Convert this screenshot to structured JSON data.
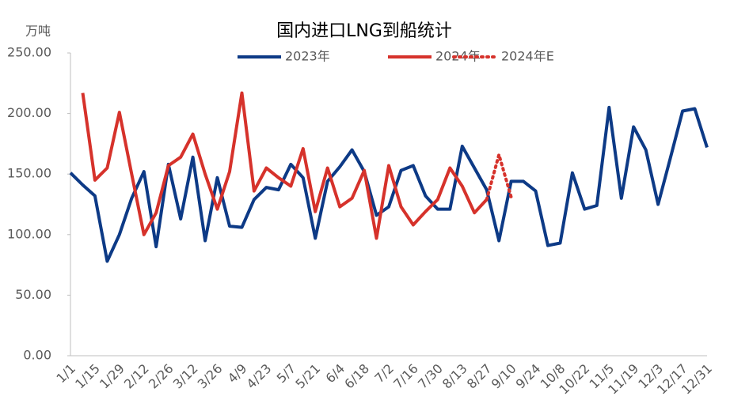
{
  "chart_data": {
    "type": "line",
    "title": "国内进口LNG到船统计",
    "y_label": "万吨",
    "categories": [
      "1/1",
      null,
      "1/15",
      null,
      "1/29",
      null,
      "2/12",
      null,
      "2/26",
      null,
      "3/12",
      null,
      "3/26",
      null,
      "4/9",
      null,
      "4/23",
      null,
      "5/7",
      null,
      "5/21",
      null,
      "6/4",
      null,
      "6/18",
      null,
      "7/2",
      null,
      "7/16",
      null,
      "7/30",
      null,
      "8/13",
      null,
      "8/27",
      null,
      "9/10",
      null,
      "9/24",
      null,
      "10/8",
      null,
      "10/22",
      null,
      "11/5",
      null,
      "11/19",
      null,
      "12/3",
      null,
      "12/17",
      null,
      "12/31"
    ],
    "series": [
      {
        "name": "2023年",
        "color": "#0d3a86",
        "dashed": false,
        "values": [
          151,
          141,
          132,
          78,
          100,
          130,
          152,
          90,
          158,
          113,
          164,
          95,
          147,
          107,
          106,
          129,
          139,
          137,
          158,
          147,
          97,
          144,
          156,
          170,
          152,
          116,
          123,
          153,
          157,
          132,
          121,
          121,
          173,
          155,
          137,
          95,
          144,
          144,
          136,
          91,
          93,
          151,
          121,
          124,
          205,
          130,
          189,
          170,
          125,
          163,
          202,
          204,
          172
        ]
      },
      {
        "name": "2024年",
        "color": "#d6322b",
        "dashed": false,
        "values": [
          null,
          217,
          145,
          155,
          201,
          150,
          100,
          118,
          157,
          164,
          183,
          150,
          121,
          152,
          217,
          136,
          155,
          147,
          140,
          171,
          119,
          155,
          123,
          130,
          153,
          97,
          157,
          123,
          108,
          119,
          129,
          155,
          140,
          118,
          129,
          null,
          null,
          null,
          null,
          null,
          null,
          null,
          null,
          null,
          null,
          null,
          null,
          null,
          null,
          null,
          null,
          null,
          null
        ]
      },
      {
        "name": "2024年E",
        "color": "#d6322b",
        "dashed": true,
        "values": [
          null,
          null,
          null,
          null,
          null,
          null,
          null,
          null,
          null,
          null,
          null,
          null,
          null,
          null,
          null,
          null,
          null,
          null,
          null,
          null,
          null,
          null,
          null,
          null,
          null,
          null,
          null,
          null,
          null,
          null,
          null,
          null,
          null,
          null,
          129,
          166,
          131,
          null,
          null,
          null,
          null,
          null,
          null,
          null,
          null,
          null,
          null,
          null,
          null,
          null,
          null,
          null,
          null
        ]
      }
    ],
    "ylim": [
      0,
      250
    ],
    "yticks": [
      {
        "value": 0,
        "label": "0.00"
      },
      {
        "value": 50,
        "label": "50.00"
      },
      {
        "value": 100,
        "label": "100.00"
      },
      {
        "value": 150,
        "label": "150.00"
      },
      {
        "value": 200,
        "label": "200.00"
      },
      {
        "value": 250,
        "label": "250.00"
      }
    ],
    "grid": false,
    "legend": "top"
  }
}
